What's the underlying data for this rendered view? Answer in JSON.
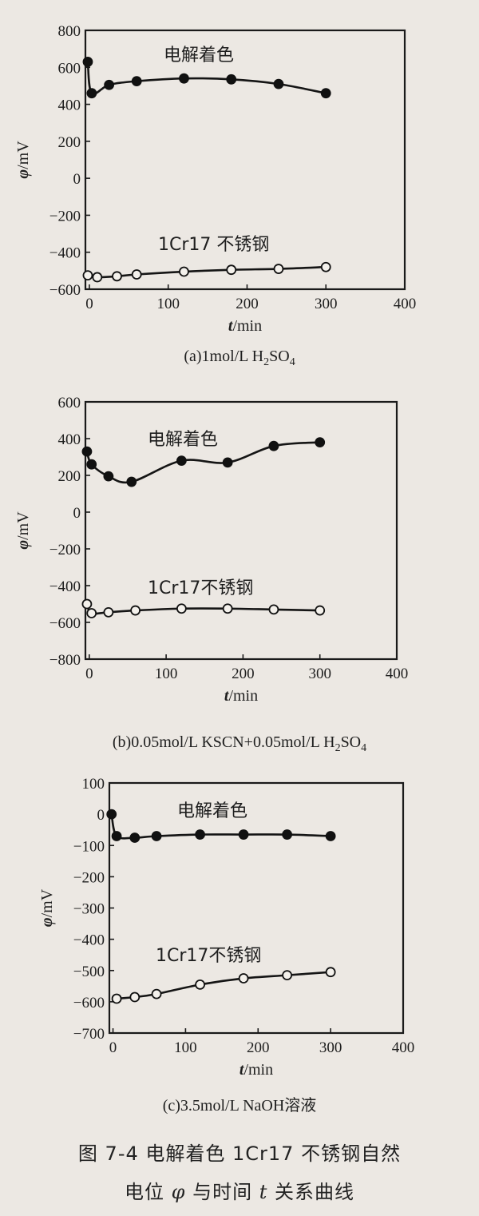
{
  "chart_data": [
    {
      "type": "line",
      "panel_label": "(a)",
      "solution_parts": [
        "1mol/L H",
        "2",
        "SO",
        "4"
      ],
      "xlabel_sym": "t",
      "xlabel_unit": "/min",
      "ylabel_sym": "φ",
      "ylabel_unit": "/mV",
      "xlim": [
        -5,
        400
      ],
      "ylim": [
        -600,
        800
      ],
      "xticks": [
        0,
        100,
        200,
        300,
        400
      ],
      "yticks": [
        800,
        600,
        400,
        200,
        0,
        -200,
        -400,
        -600
      ],
      "xtick_labels": [
        "0",
        "100",
        "200",
        "300",
        "400"
      ],
      "ytick_labels": [
        "800",
        "600",
        "400",
        "200",
        "0",
        "−200",
        "−400",
        "−600"
      ],
      "series": [
        {
          "name": "电解着色",
          "marker": "filled",
          "x": [
            -2,
            3,
            25,
            60,
            120,
            180,
            240,
            300
          ],
          "y": [
            630,
            460,
            505,
            525,
            540,
            535,
            510,
            460
          ]
        },
        {
          "name": "1Cr17 不锈钢",
          "marker": "open",
          "x": [
            -2,
            10,
            35,
            60,
            120,
            180,
            240,
            300
          ],
          "y": [
            -525,
            -535,
            -530,
            -520,
            -505,
            -495,
            -490,
            -480
          ]
        }
      ]
    },
    {
      "type": "line",
      "panel_label": "(b)",
      "solution_parts": [
        "0.05mol/L KSCN+0.05mol/L H",
        "2",
        "SO",
        "4"
      ],
      "xlabel_sym": "t",
      "xlabel_unit": "/min",
      "ylabel_sym": "φ",
      "ylabel_unit": "/mV",
      "xlim": [
        -5,
        400
      ],
      "ylim": [
        -800,
        600
      ],
      "xticks": [
        0,
        100,
        200,
        300,
        400
      ],
      "yticks": [
        600,
        400,
        200,
        0,
        -200,
        -400,
        -600,
        -800
      ],
      "xtick_labels": [
        "0",
        "100",
        "200",
        "300",
        "400"
      ],
      "ytick_labels": [
        "600",
        "400",
        "200",
        "0",
        "−200",
        "−400",
        "−600",
        "−800"
      ],
      "series": [
        {
          "name": "电解着色",
          "marker": "filled",
          "x": [
            -3,
            3,
            25,
            55,
            120,
            180,
            240,
            300
          ],
          "y": [
            330,
            260,
            195,
            165,
            280,
            270,
            360,
            380
          ]
        },
        {
          "name": "1Cr17不锈钢",
          "marker": "open",
          "x": [
            -3,
            3,
            25,
            60,
            120,
            180,
            240,
            300
          ],
          "y": [
            -500,
            -550,
            -545,
            -535,
            -525,
            -525,
            -530,
            -535
          ]
        }
      ]
    },
    {
      "type": "line",
      "panel_label": "(c)",
      "solution_parts": [
        "3.5mol/L NaOH溶液"
      ],
      "xlabel_sym": "t",
      "xlabel_unit": "/min",
      "ylabel_sym": "φ",
      "ylabel_unit": "/mV",
      "xlim": [
        -5,
        400
      ],
      "ylim": [
        -700,
        100
      ],
      "xticks": [
        0,
        100,
        200,
        300,
        400
      ],
      "yticks": [
        100,
        0,
        -100,
        -200,
        -300,
        -400,
        -500,
        -600,
        -700
      ],
      "xtick_labels": [
        "0",
        "100",
        "200",
        "300",
        "400"
      ],
      "ytick_labels": [
        "100",
        "0",
        "−100",
        "−200",
        "−300",
        "−400",
        "−500",
        "−600",
        "−700"
      ],
      "series": [
        {
          "name": "电解着色",
          "marker": "filled",
          "x": [
            -2,
            5,
            30,
            60,
            120,
            180,
            240,
            300
          ],
          "y": [
            0,
            -70,
            -75,
            -70,
            -65,
            -65,
            -65,
            -70
          ]
        },
        {
          "name": "1Cr17不锈钢",
          "marker": "open",
          "x": [
            5,
            30,
            60,
            120,
            180,
            240,
            300
          ],
          "y": [
            -590,
            -585,
            -575,
            -545,
            -525,
            -515,
            -505
          ]
        }
      ]
    }
  ],
  "figure_caption": {
    "line1": "图 7-4   电解着色 1Cr17 不锈钢自然",
    "line2_parts": [
      "电位 ",
      "φ",
      " 与时间 ",
      "t",
      " 关系曲线"
    ]
  }
}
